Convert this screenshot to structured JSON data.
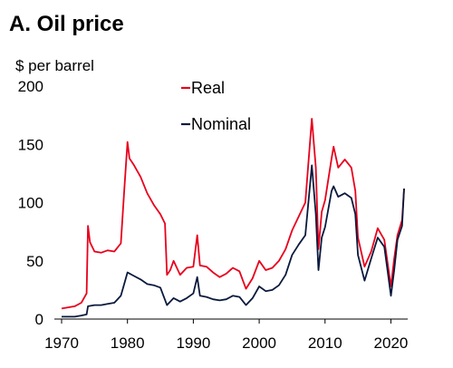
{
  "chart_data": {
    "type": "line",
    "title": "A. Oil price",
    "ylabel": "$ per barrel",
    "xlabel": "",
    "xlim": [
      1970,
      2022
    ],
    "ylim": [
      0,
      200
    ],
    "x_ticks": [
      "1970",
      "1980",
      "1990",
      "2000",
      "2010",
      "2020"
    ],
    "y_ticks": [
      "0",
      "50",
      "100",
      "150",
      "200"
    ],
    "grid": false,
    "legend_position": "top-center",
    "series": [
      {
        "name": "Real",
        "color": "#e8001c",
        "points": [
          [
            1970,
            9
          ],
          [
            1971,
            10
          ],
          [
            1972,
            11
          ],
          [
            1973,
            14
          ],
          [
            1973.8,
            22
          ],
          [
            1974,
            80
          ],
          [
            1974.3,
            66
          ],
          [
            1975,
            58
          ],
          [
            1976,
            57
          ],
          [
            1977,
            59
          ],
          [
            1978,
            58
          ],
          [
            1979,
            65
          ],
          [
            1979.5,
            110
          ],
          [
            1980,
            152
          ],
          [
            1980.3,
            138
          ],
          [
            1981,
            132
          ],
          [
            1982,
            122
          ],
          [
            1983,
            108
          ],
          [
            1984,
            98
          ],
          [
            1985,
            90
          ],
          [
            1985.7,
            82
          ],
          [
            1986,
            38
          ],
          [
            1986.5,
            42
          ],
          [
            1987,
            50
          ],
          [
            1988,
            38
          ],
          [
            1989,
            44
          ],
          [
            1990,
            45
          ],
          [
            1990.6,
            72
          ],
          [
            1991,
            46
          ],
          [
            1992,
            45
          ],
          [
            1993,
            40
          ],
          [
            1994,
            36
          ],
          [
            1995,
            39
          ],
          [
            1996,
            44
          ],
          [
            1997,
            41
          ],
          [
            1998,
            26
          ],
          [
            1999,
            35
          ],
          [
            2000,
            50
          ],
          [
            2001,
            42
          ],
          [
            2002,
            44
          ],
          [
            2003,
            50
          ],
          [
            2004,
            60
          ],
          [
            2005,
            76
          ],
          [
            2006,
            88
          ],
          [
            2007,
            100
          ],
          [
            2008,
            172
          ],
          [
            2008.6,
            130
          ],
          [
            2009,
            60
          ],
          [
            2009.5,
            92
          ],
          [
            2010,
            102
          ],
          [
            2011,
            138
          ],
          [
            2011.3,
            148
          ],
          [
            2012,
            130
          ],
          [
            2013,
            137
          ],
          [
            2014,
            130
          ],
          [
            2014.6,
            110
          ],
          [
            2015,
            70
          ],
          [
            2016,
            45
          ],
          [
            2017,
            58
          ],
          [
            2018,
            78
          ],
          [
            2019,
            68
          ],
          [
            2020,
            28
          ],
          [
            2020.5,
            52
          ],
          [
            2021,
            72
          ],
          [
            2021.7,
            85
          ],
          [
            2022,
            112
          ]
        ]
      },
      {
        "name": "Nominal",
        "color": "#0a1a3d",
        "points": [
          [
            1970,
            2
          ],
          [
            1971,
            2
          ],
          [
            1972,
            2
          ],
          [
            1973,
            3
          ],
          [
            1973.8,
            4
          ],
          [
            1974,
            11
          ],
          [
            1975,
            12
          ],
          [
            1976,
            12
          ],
          [
            1977,
            13
          ],
          [
            1978,
            14
          ],
          [
            1979,
            20
          ],
          [
            1979.5,
            30
          ],
          [
            1980,
            40
          ],
          [
            1981,
            37
          ],
          [
            1982,
            34
          ],
          [
            1983,
            30
          ],
          [
            1984,
            29
          ],
          [
            1985,
            27
          ],
          [
            1986,
            12
          ],
          [
            1987,
            18
          ],
          [
            1988,
            15
          ],
          [
            1989,
            18
          ],
          [
            1990,
            22
          ],
          [
            1990.6,
            36
          ],
          [
            1991,
            20
          ],
          [
            1992,
            19
          ],
          [
            1993,
            17
          ],
          [
            1994,
            16
          ],
          [
            1995,
            17
          ],
          [
            1996,
            20
          ],
          [
            1997,
            19
          ],
          [
            1998,
            12
          ],
          [
            1999,
            18
          ],
          [
            2000,
            28
          ],
          [
            2001,
            24
          ],
          [
            2002,
            25
          ],
          [
            2003,
            29
          ],
          [
            2004,
            38
          ],
          [
            2005,
            55
          ],
          [
            2006,
            64
          ],
          [
            2007,
            72
          ],
          [
            2008,
            132
          ],
          [
            2008.6,
            90
          ],
          [
            2009,
            42
          ],
          [
            2009.5,
            70
          ],
          [
            2010,
            79
          ],
          [
            2011,
            110
          ],
          [
            2011.3,
            114
          ],
          [
            2012,
            105
          ],
          [
            2013,
            108
          ],
          [
            2014,
            104
          ],
          [
            2014.6,
            90
          ],
          [
            2015,
            55
          ],
          [
            2016,
            33
          ],
          [
            2017,
            52
          ],
          [
            2018,
            70
          ],
          [
            2019,
            62
          ],
          [
            2020,
            20
          ],
          [
            2020.5,
            42
          ],
          [
            2021,
            68
          ],
          [
            2021.7,
            80
          ],
          [
            2022,
            112
          ]
        ]
      }
    ]
  }
}
